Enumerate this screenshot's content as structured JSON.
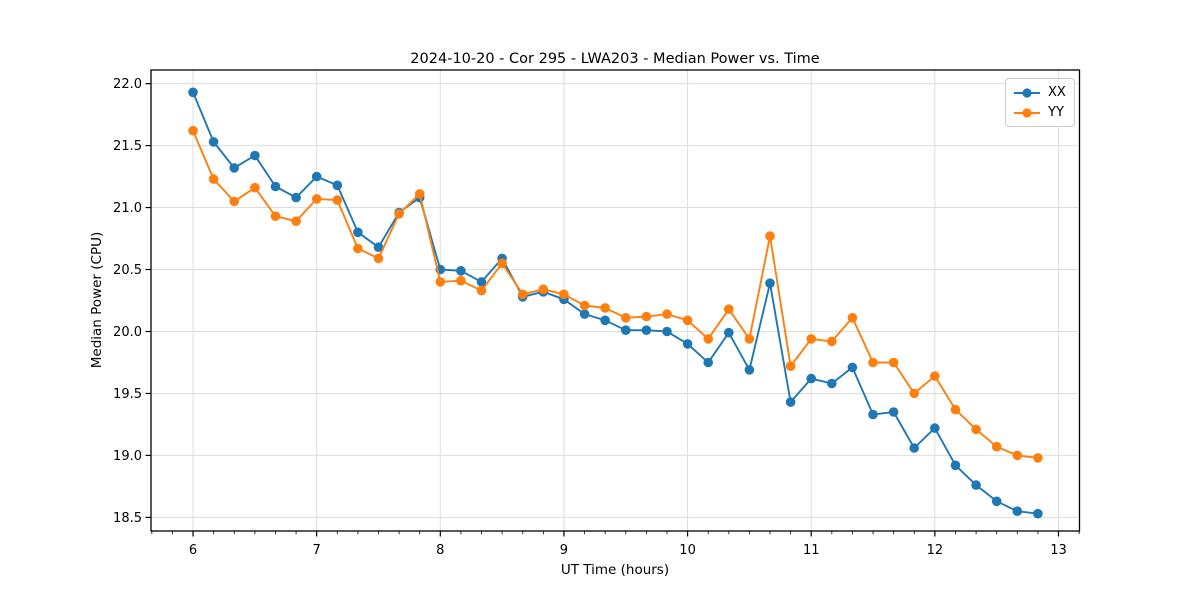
{
  "chart_data": {
    "type": "line",
    "title": "2024-10-20 - Cor 295 - LWA203 - Median Power vs. Time",
    "xlabel": "UT Time (hours)",
    "ylabel": "Median Power (CPU)",
    "xlim": [
      5.66,
      13.17
    ],
    "ylim": [
      18.39,
      22.11
    ],
    "x_ticks": [
      6,
      7,
      8,
      9,
      10,
      11,
      12,
      13
    ],
    "y_ticks": [
      18.5,
      19.0,
      19.5,
      20.0,
      20.5,
      21.0,
      21.5,
      22.0
    ],
    "x_minor_tick_step": 0.16667,
    "grid": true,
    "grid_color": "#dedede",
    "legend_position": "upper right",
    "x": [
      6.0,
      6.1667,
      6.3333,
      6.5,
      6.6667,
      6.8333,
      7.0,
      7.1667,
      7.3333,
      7.5,
      7.6667,
      7.8333,
      8.0,
      8.1667,
      8.3333,
      8.5,
      8.6667,
      8.8333,
      9.0,
      9.1667,
      9.3333,
      9.5,
      9.6667,
      9.8333,
      10.0,
      10.1667,
      10.3333,
      10.5,
      10.6667,
      10.8333,
      11.0,
      11.1667,
      11.3333,
      11.5,
      11.6667,
      11.8333,
      12.0,
      12.1667,
      12.3333,
      12.5,
      12.6667,
      12.8333
    ],
    "series": [
      {
        "name": "XX",
        "color": "#1f77b4",
        "values": [
          21.93,
          21.53,
          21.32,
          21.42,
          21.17,
          21.08,
          21.25,
          21.18,
          20.8,
          20.68,
          20.96,
          21.08,
          20.5,
          20.49,
          20.4,
          20.59,
          20.28,
          20.32,
          20.26,
          20.14,
          20.09,
          20.01,
          20.01,
          20.0,
          19.9,
          19.75,
          19.99,
          19.69,
          20.39,
          19.43,
          19.62,
          19.58,
          19.71,
          19.33,
          19.35,
          19.06,
          19.22,
          18.92,
          18.76,
          18.63,
          18.55,
          18.53
        ]
      },
      {
        "name": "YY",
        "color": "#ff7f0e",
        "values": [
          21.62,
          21.23,
          21.05,
          21.16,
          20.93,
          20.89,
          21.07,
          21.06,
          20.67,
          20.59,
          20.95,
          21.11,
          20.4,
          20.41,
          20.33,
          20.55,
          20.3,
          20.34,
          20.3,
          20.21,
          20.19,
          20.11,
          20.12,
          20.14,
          20.09,
          19.94,
          20.18,
          19.94,
          20.77,
          19.72,
          19.94,
          19.92,
          20.11,
          19.75,
          19.75,
          19.5,
          19.64,
          19.37,
          19.21,
          19.07,
          19.0,
          18.98
        ]
      }
    ]
  }
}
